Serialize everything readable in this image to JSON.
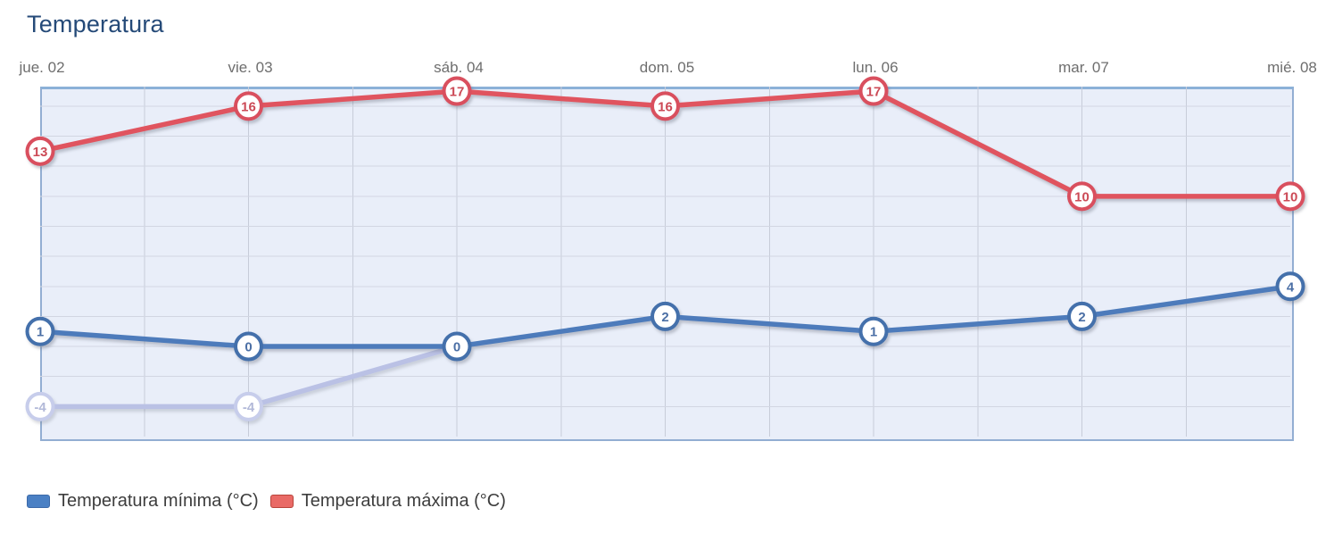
{
  "header": {
    "title": "Temperatura",
    "title_color": "#254a78"
  },
  "x_axis": {
    "labels": [
      "jue. 02",
      "vie. 03",
      "sáb. 04",
      "dom. 05",
      "lun. 06",
      "mar. 07",
      "mié. 08"
    ],
    "color": "#6e6e6e"
  },
  "chart_data": {
    "type": "line",
    "title": "Temperatura",
    "categories": [
      "jue. 02",
      "vie. 03",
      "sáb. 04",
      "dom. 05",
      "lun. 06",
      "mar. 07",
      "mié. 08"
    ],
    "series": [
      {
        "name": "",
        "values": [
          -4,
          -4,
          0,
          null,
          null,
          null,
          null
        ],
        "marker_values": [
          -4,
          -4,
          null,
          null,
          null,
          null,
          null
        ],
        "color": "#bac1e5",
        "marker_stroke": "#c7cdeb",
        "label_color": "#b2b9d8",
        "faded": true,
        "in_legend": false
      },
      {
        "name": "Temperatura mínima (°C)",
        "values": [
          1,
          0,
          0,
          2,
          1,
          2,
          4
        ],
        "marker_values": [
          1,
          0,
          0,
          2,
          1,
          2,
          4
        ],
        "color": "#4d7bbb",
        "marker_stroke": "#4470ab",
        "label_color": "#4b6fa5",
        "faded": false,
        "in_legend": true
      },
      {
        "name": "Temperatura máxima (°C)",
        "values": [
          13,
          16,
          17,
          16,
          17,
          10,
          10
        ],
        "marker_values": [
          13,
          16,
          17,
          16,
          17,
          10,
          10
        ],
        "color": "#e0545f",
        "marker_stroke": "#d94f5e",
        "label_color": "#cc4a56",
        "faded": false,
        "in_legend": true
      }
    ],
    "ylim": [
      -6,
      17.3
    ],
    "ygrid_step": 2,
    "xgrid_divisions_per_interval": 2,
    "grid": true,
    "legend_position": "bottom-left",
    "plot_style": {
      "background": "#e9eef9",
      "border_color": "#93aed2",
      "hgrid_color": "#d2d6e2",
      "vgrid_color": "#c7ccd9"
    }
  },
  "legend": {
    "items": [
      {
        "label": "Temperatura mínima (°C)",
        "swatch_fill": "#4a80c4",
        "swatch_border": "#3c69a8"
      },
      {
        "label": "Temperatura máxima (°C)",
        "swatch_fill": "#e96a66",
        "swatch_border": "#b8443b"
      }
    ]
  }
}
